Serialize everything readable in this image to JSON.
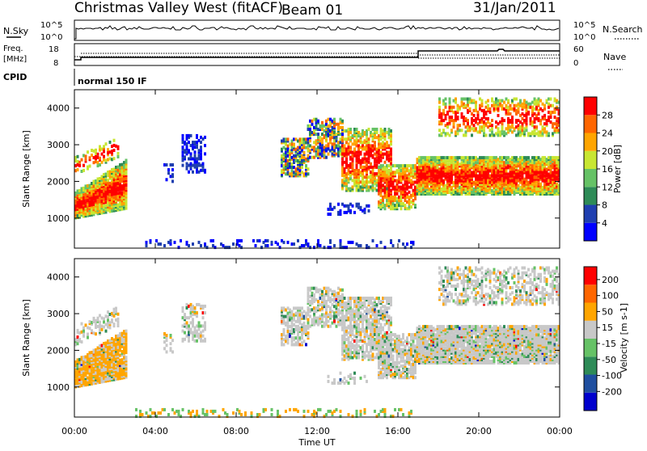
{
  "header": {
    "station": "Christmas Valley West (fitACF)",
    "beam": "Beam 01",
    "date": "31/Jan/2011"
  },
  "panels": {
    "nsky_label": "N.Sky",
    "nsearch_label": "N.Search",
    "nsky_ticks": [
      "10^5",
      "10^0"
    ],
    "nsearch_ticks": [
      "10^5",
      "10^0"
    ],
    "freq_label_1": "Freq.",
    "freq_label_2": "[MHz]",
    "freq_ticks": [
      "18",
      "8"
    ],
    "nave_label": "Nave",
    "nave_ticks": [
      "60",
      "0"
    ],
    "cpid_label": "CPID",
    "cpid_value": "normal 150 IF"
  },
  "chart_data": [
    {
      "type": "heatmap",
      "name": "power",
      "ylabel": "Slant Range [km]",
      "yticks": [
        "4000",
        "3000",
        "2000",
        "1000"
      ],
      "colorbar_label": "Power [dB]",
      "colorbar_ticks": [
        "28",
        "24",
        "20",
        "16",
        "12",
        "8",
        "4"
      ],
      "colors": [
        "#0000ff",
        "#1f3fb0",
        "#2e8b57",
        "#66c266",
        "#c8e632",
        "#ffa500",
        "#ff6600",
        "#ff0000"
      ]
    },
    {
      "type": "heatmap",
      "name": "velocity",
      "ylabel": "Slant Range [km]",
      "yticks": [
        "4000",
        "3000",
        "2000",
        "1000"
      ],
      "colorbar_label": "Velocity [m s-1]",
      "colorbar_ticks": [
        "200",
        "100",
        "50",
        "15",
        "-15",
        "-50",
        "-100",
        "-200"
      ],
      "colors": [
        "#0000cd",
        "#1f4fa0",
        "#2e8b57",
        "#66c266",
        "#c8c8c8",
        "#ffa500",
        "#ff6600",
        "#ff0000"
      ]
    }
  ],
  "xaxis": {
    "label": "Time UT",
    "ticks": [
      "00:00",
      "04:00",
      "08:00",
      "12:00",
      "16:00",
      "20:00",
      "00:00"
    ]
  }
}
